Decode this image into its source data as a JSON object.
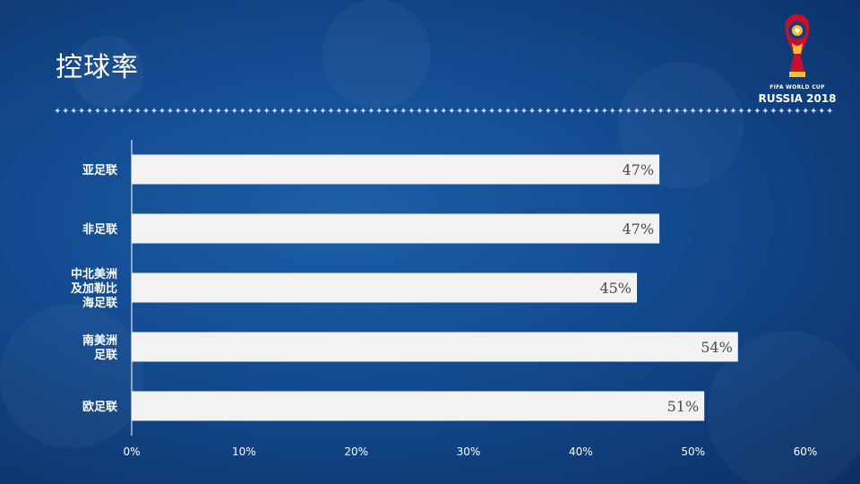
{
  "slide": {
    "title": "控球率"
  },
  "logo": {
    "line1": "FIFA WORLD CUP",
    "line2": "RUSSIA 2018"
  },
  "chart_data": {
    "type": "bar",
    "orientation": "horizontal",
    "categories": [
      [
        "亚足联"
      ],
      [
        "非足联"
      ],
      [
        "中北美洲",
        "及加勒比",
        "海足联"
      ],
      [
        "南美洲",
        "足联"
      ],
      [
        "欧足联"
      ]
    ],
    "values": [
      47,
      47,
      45,
      54,
      51
    ],
    "value_labels": [
      "47%",
      "47%",
      "45%",
      "54%",
      "51%"
    ],
    "xlim": [
      0,
      60
    ],
    "xticks": [
      "0%",
      "10%",
      "20%",
      "30%",
      "40%",
      "50%",
      "60%"
    ],
    "bar_color": "#f2f2f2",
    "grid": false
  }
}
